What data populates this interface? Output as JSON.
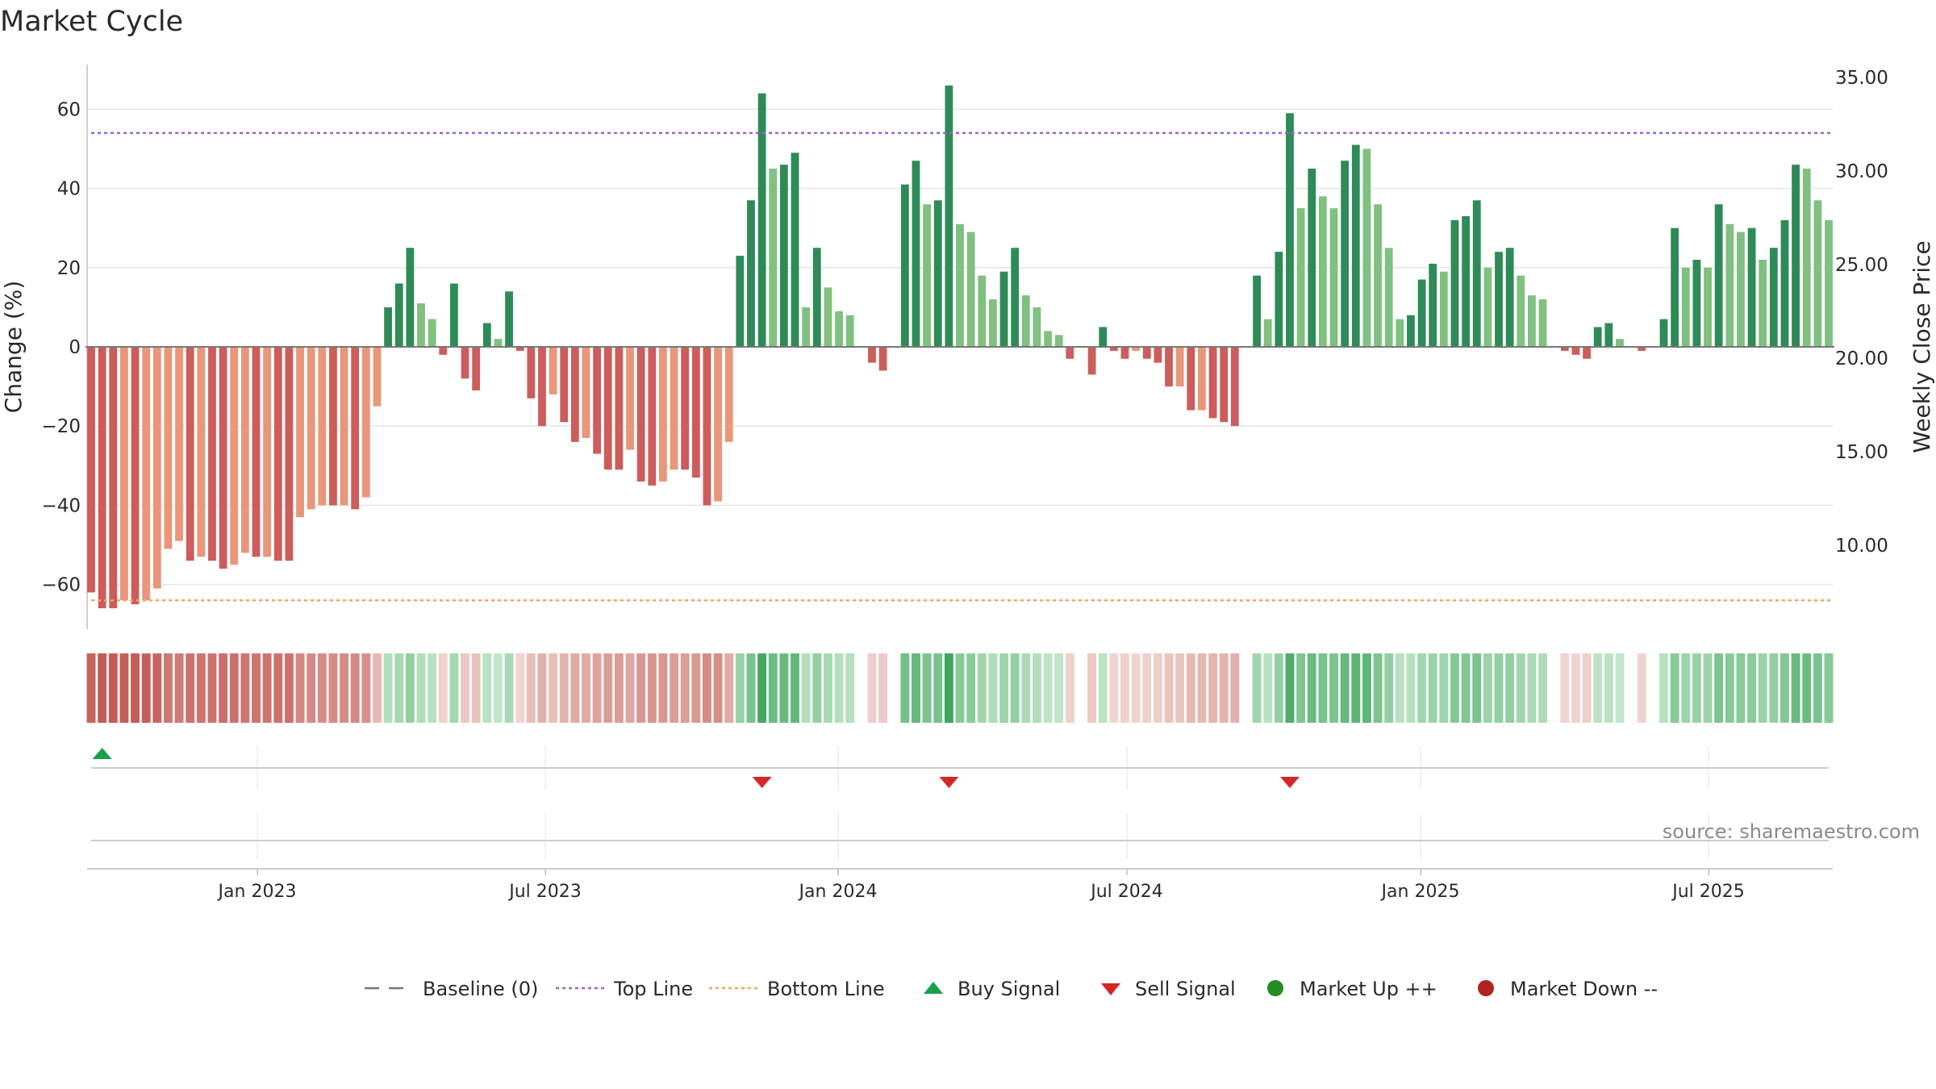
{
  "title": "Market Cycle",
  "source": "source: sharemaestro.com",
  "colors": {
    "strong_up": "#2e8b57",
    "weak_up": "#80c080",
    "strong_down": "#cd5c5c",
    "weak_down": "#e9967a",
    "top_line": "#9966cc",
    "bottom_line": "#f4a460",
    "baseline": "#777777",
    "buy": "#1a9e4a",
    "sell": "#d62728",
    "market_up": "#228b22",
    "market_down": "#b22222"
  },
  "chart_data": {
    "type": "bar",
    "y_left": {
      "label": "Change (%)",
      "range": [
        -72,
        72
      ],
      "ticks": [
        60,
        40,
        20,
        0,
        -20,
        -40,
        -60
      ]
    },
    "y_right": {
      "label": "Weekly Close Price",
      "ticks": [
        "35.00",
        "30.00",
        "25.00",
        "20.00",
        "15.00",
        "10.00"
      ]
    },
    "x_ticks": [
      "Jan 2023",
      "Jul 2023",
      "Jan 2024",
      "Jul 2024",
      "Jan 2025",
      "Jul 2025"
    ],
    "reference_lines": {
      "baseline": 0,
      "top_line": 54,
      "bottom_line": -64
    },
    "weeks": [
      {
        "v": -62,
        "s": "D"
      },
      {
        "v": -66,
        "s": "D"
      },
      {
        "v": -66,
        "s": "D"
      },
      {
        "v": -64,
        "s": "d"
      },
      {
        "v": -65,
        "s": "D"
      },
      {
        "v": -64,
        "s": "d"
      },
      {
        "v": -61,
        "s": "d"
      },
      {
        "v": -51,
        "s": "d"
      },
      {
        "v": -49,
        "s": "d"
      },
      {
        "v": -54,
        "s": "D"
      },
      {
        "v": -53,
        "s": "d"
      },
      {
        "v": -54,
        "s": "D"
      },
      {
        "v": -56,
        "s": "D"
      },
      {
        "v": -55,
        "s": "d"
      },
      {
        "v": -52,
        "s": "d"
      },
      {
        "v": -53,
        "s": "D"
      },
      {
        "v": -53,
        "s": "d"
      },
      {
        "v": -54,
        "s": "D"
      },
      {
        "v": -54,
        "s": "D"
      },
      {
        "v": -43,
        "s": "d"
      },
      {
        "v": -41,
        "s": "d"
      },
      {
        "v": -40,
        "s": "d"
      },
      {
        "v": -40,
        "s": "D"
      },
      {
        "v": -40,
        "s": "d"
      },
      {
        "v": -41,
        "s": "D"
      },
      {
        "v": -38,
        "s": "d"
      },
      {
        "v": -15,
        "s": "d"
      },
      {
        "v": 10,
        "s": "U"
      },
      {
        "v": 16,
        "s": "U"
      },
      {
        "v": 25,
        "s": "U"
      },
      {
        "v": 11,
        "s": "u"
      },
      {
        "v": 7,
        "s": "u"
      },
      {
        "v": -2,
        "s": "D"
      },
      {
        "v": 16,
        "s": "U"
      },
      {
        "v": -8,
        "s": "D"
      },
      {
        "v": -11,
        "s": "D"
      },
      {
        "v": 6,
        "s": "U"
      },
      {
        "v": 2,
        "s": "u"
      },
      {
        "v": 14,
        "s": "U"
      },
      {
        "v": -1,
        "s": "D"
      },
      {
        "v": -13,
        "s": "D"
      },
      {
        "v": -20,
        "s": "D"
      },
      {
        "v": -12,
        "s": "d"
      },
      {
        "v": -19,
        "s": "D"
      },
      {
        "v": -24,
        "s": "D"
      },
      {
        "v": -23,
        "s": "d"
      },
      {
        "v": -27,
        "s": "D"
      },
      {
        "v": -31,
        "s": "D"
      },
      {
        "v": -31,
        "s": "D"
      },
      {
        "v": -26,
        "s": "d"
      },
      {
        "v": -34,
        "s": "D"
      },
      {
        "v": -35,
        "s": "D"
      },
      {
        "v": -34,
        "s": "d"
      },
      {
        "v": -31,
        "s": "d"
      },
      {
        "v": -31,
        "s": "D"
      },
      {
        "v": -33,
        "s": "D"
      },
      {
        "v": -40,
        "s": "D"
      },
      {
        "v": -39,
        "s": "d"
      },
      {
        "v": -24,
        "s": "d"
      },
      {
        "v": 23,
        "s": "U"
      },
      {
        "v": 37,
        "s": "U"
      },
      {
        "v": 64,
        "s": "U"
      },
      {
        "v": 45,
        "s": "u"
      },
      {
        "v": 46,
        "s": "U"
      },
      {
        "v": 49,
        "s": "U"
      },
      {
        "v": 10,
        "s": "u"
      },
      {
        "v": 25,
        "s": "U"
      },
      {
        "v": 15,
        "s": "u"
      },
      {
        "v": 9,
        "s": "u"
      },
      {
        "v": 8,
        "s": "u"
      },
      {
        "v": 0,
        "s": "N"
      },
      {
        "v": -4,
        "s": "D"
      },
      {
        "v": -6,
        "s": "D"
      },
      {
        "v": 0,
        "s": "N"
      },
      {
        "v": 41,
        "s": "U"
      },
      {
        "v": 47,
        "s": "U"
      },
      {
        "v": 36,
        "s": "u"
      },
      {
        "v": 37,
        "s": "U"
      },
      {
        "v": 66,
        "s": "U"
      },
      {
        "v": 31,
        "s": "u"
      },
      {
        "v": 29,
        "s": "u"
      },
      {
        "v": 18,
        "s": "u"
      },
      {
        "v": 12,
        "s": "u"
      },
      {
        "v": 19,
        "s": "U"
      },
      {
        "v": 25,
        "s": "U"
      },
      {
        "v": 13,
        "s": "u"
      },
      {
        "v": 10,
        "s": "u"
      },
      {
        "v": 4,
        "s": "u"
      },
      {
        "v": 3,
        "s": "u"
      },
      {
        "v": -3,
        "s": "D"
      },
      {
        "v": 0,
        "s": "N"
      },
      {
        "v": -7,
        "s": "D"
      },
      {
        "v": 5,
        "s": "U"
      },
      {
        "v": -1,
        "s": "D"
      },
      {
        "v": -3,
        "s": "D"
      },
      {
        "v": -1,
        "s": "d"
      },
      {
        "v": -3,
        "s": "D"
      },
      {
        "v": -4,
        "s": "D"
      },
      {
        "v": -10,
        "s": "D"
      },
      {
        "v": -10,
        "s": "d"
      },
      {
        "v": -16,
        "s": "D"
      },
      {
        "v": -16,
        "s": "d"
      },
      {
        "v": -18,
        "s": "D"
      },
      {
        "v": -19,
        "s": "D"
      },
      {
        "v": -20,
        "s": "D"
      },
      {
        "v": 0,
        "s": "N"
      },
      {
        "v": 18,
        "s": "U"
      },
      {
        "v": 7,
        "s": "u"
      },
      {
        "v": 24,
        "s": "U"
      },
      {
        "v": 59,
        "s": "U"
      },
      {
        "v": 35,
        "s": "u"
      },
      {
        "v": 45,
        "s": "U"
      },
      {
        "v": 38,
        "s": "u"
      },
      {
        "v": 35,
        "s": "u"
      },
      {
        "v": 47,
        "s": "U"
      },
      {
        "v": 51,
        "s": "U"
      },
      {
        "v": 50,
        "s": "u"
      },
      {
        "v": 36,
        "s": "u"
      },
      {
        "v": 25,
        "s": "u"
      },
      {
        "v": 7,
        "s": "u"
      },
      {
        "v": 8,
        "s": "U"
      },
      {
        "v": 17,
        "s": "U"
      },
      {
        "v": 21,
        "s": "U"
      },
      {
        "v": 19,
        "s": "u"
      },
      {
        "v": 32,
        "s": "U"
      },
      {
        "v": 33,
        "s": "U"
      },
      {
        "v": 37,
        "s": "U"
      },
      {
        "v": 20,
        "s": "u"
      },
      {
        "v": 24,
        "s": "U"
      },
      {
        "v": 25,
        "s": "U"
      },
      {
        "v": 18,
        "s": "u"
      },
      {
        "v": 13,
        "s": "u"
      },
      {
        "v": 12,
        "s": "u"
      },
      {
        "v": 0,
        "s": "N"
      },
      {
        "v": -1,
        "s": "D"
      },
      {
        "v": -2,
        "s": "D"
      },
      {
        "v": -3,
        "s": "D"
      },
      {
        "v": 5,
        "s": "U"
      },
      {
        "v": 6,
        "s": "U"
      },
      {
        "v": 2,
        "s": "u"
      },
      {
        "v": 0,
        "s": "N"
      },
      {
        "v": -1,
        "s": "D"
      },
      {
        "v": 0,
        "s": "N"
      },
      {
        "v": 7,
        "s": "U"
      },
      {
        "v": 30,
        "s": "U"
      },
      {
        "v": 20,
        "s": "u"
      },
      {
        "v": 22,
        "s": "U"
      },
      {
        "v": 20,
        "s": "u"
      },
      {
        "v": 36,
        "s": "U"
      },
      {
        "v": 31,
        "s": "u"
      },
      {
        "v": 29,
        "s": "u"
      },
      {
        "v": 30,
        "s": "U"
      },
      {
        "v": 22,
        "s": "u"
      },
      {
        "v": 25,
        "s": "U"
      },
      {
        "v": 32,
        "s": "U"
      },
      {
        "v": 46,
        "s": "U"
      },
      {
        "v": 45,
        "s": "u"
      },
      {
        "v": 37,
        "s": "u"
      },
      {
        "v": 32,
        "s": "u"
      }
    ],
    "signals": [
      {
        "type": "buy",
        "week": 1
      },
      {
        "type": "sell",
        "week": 61
      },
      {
        "type": "sell",
        "week": 78
      },
      {
        "type": "sell",
        "week": 109
      }
    ]
  },
  "legend": [
    {
      "key": "baseline",
      "label": "Baseline (0)",
      "marker": "dash-line"
    },
    {
      "key": "top_line",
      "label": "Top Line",
      "marker": "dotted-line"
    },
    {
      "key": "bottom_line",
      "label": "Bottom Line",
      "marker": "dotted-line"
    },
    {
      "key": "buy",
      "label": "Buy Signal",
      "marker": "triangle-up"
    },
    {
      "key": "sell",
      "label": "Sell Signal",
      "marker": "triangle-down"
    },
    {
      "key": "market_up",
      "label": "Market Up ++",
      "marker": "circle"
    },
    {
      "key": "market_down",
      "label": "Market Down --",
      "marker": "circle"
    }
  ]
}
